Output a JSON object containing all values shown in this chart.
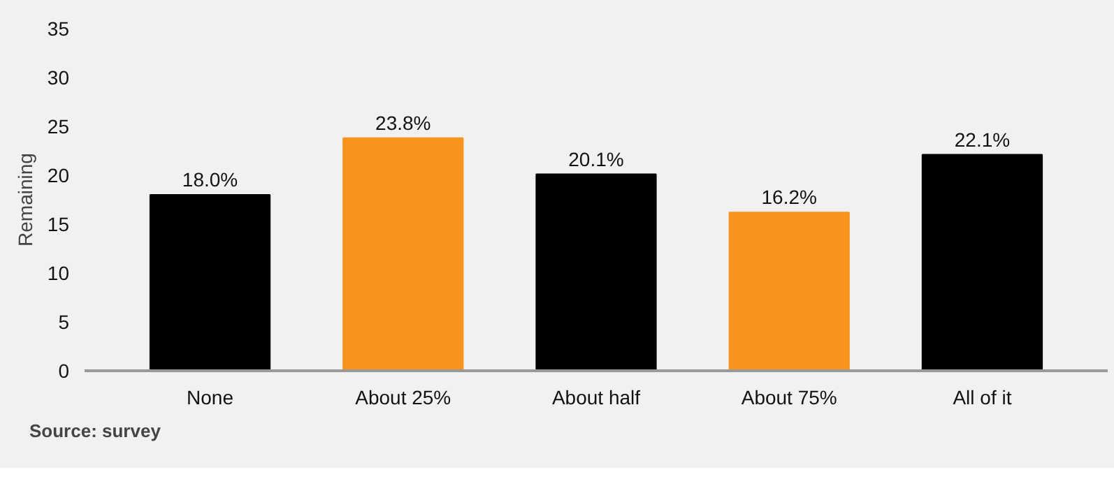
{
  "chart_data": {
    "type": "bar",
    "ylabel": "Remaining",
    "categories": [
      "None",
      "About 25%",
      "About half",
      "About 75%",
      "All of it"
    ],
    "values": [
      18.0,
      23.8,
      20.1,
      16.2,
      22.1
    ],
    "colors": [
      "#000000",
      "#f7941d",
      "#000000",
      "#f7941d",
      "#000000"
    ],
    "value_labels": [
      "18.0%",
      "23.8%",
      "20.1%",
      "16.2%",
      "22.1%"
    ],
    "ylim": [
      0,
      35
    ],
    "yticks": [
      0,
      5,
      10,
      15,
      20,
      25,
      30,
      35
    ],
    "grid": false,
    "annotations": [
      "Source: survey"
    ]
  }
}
